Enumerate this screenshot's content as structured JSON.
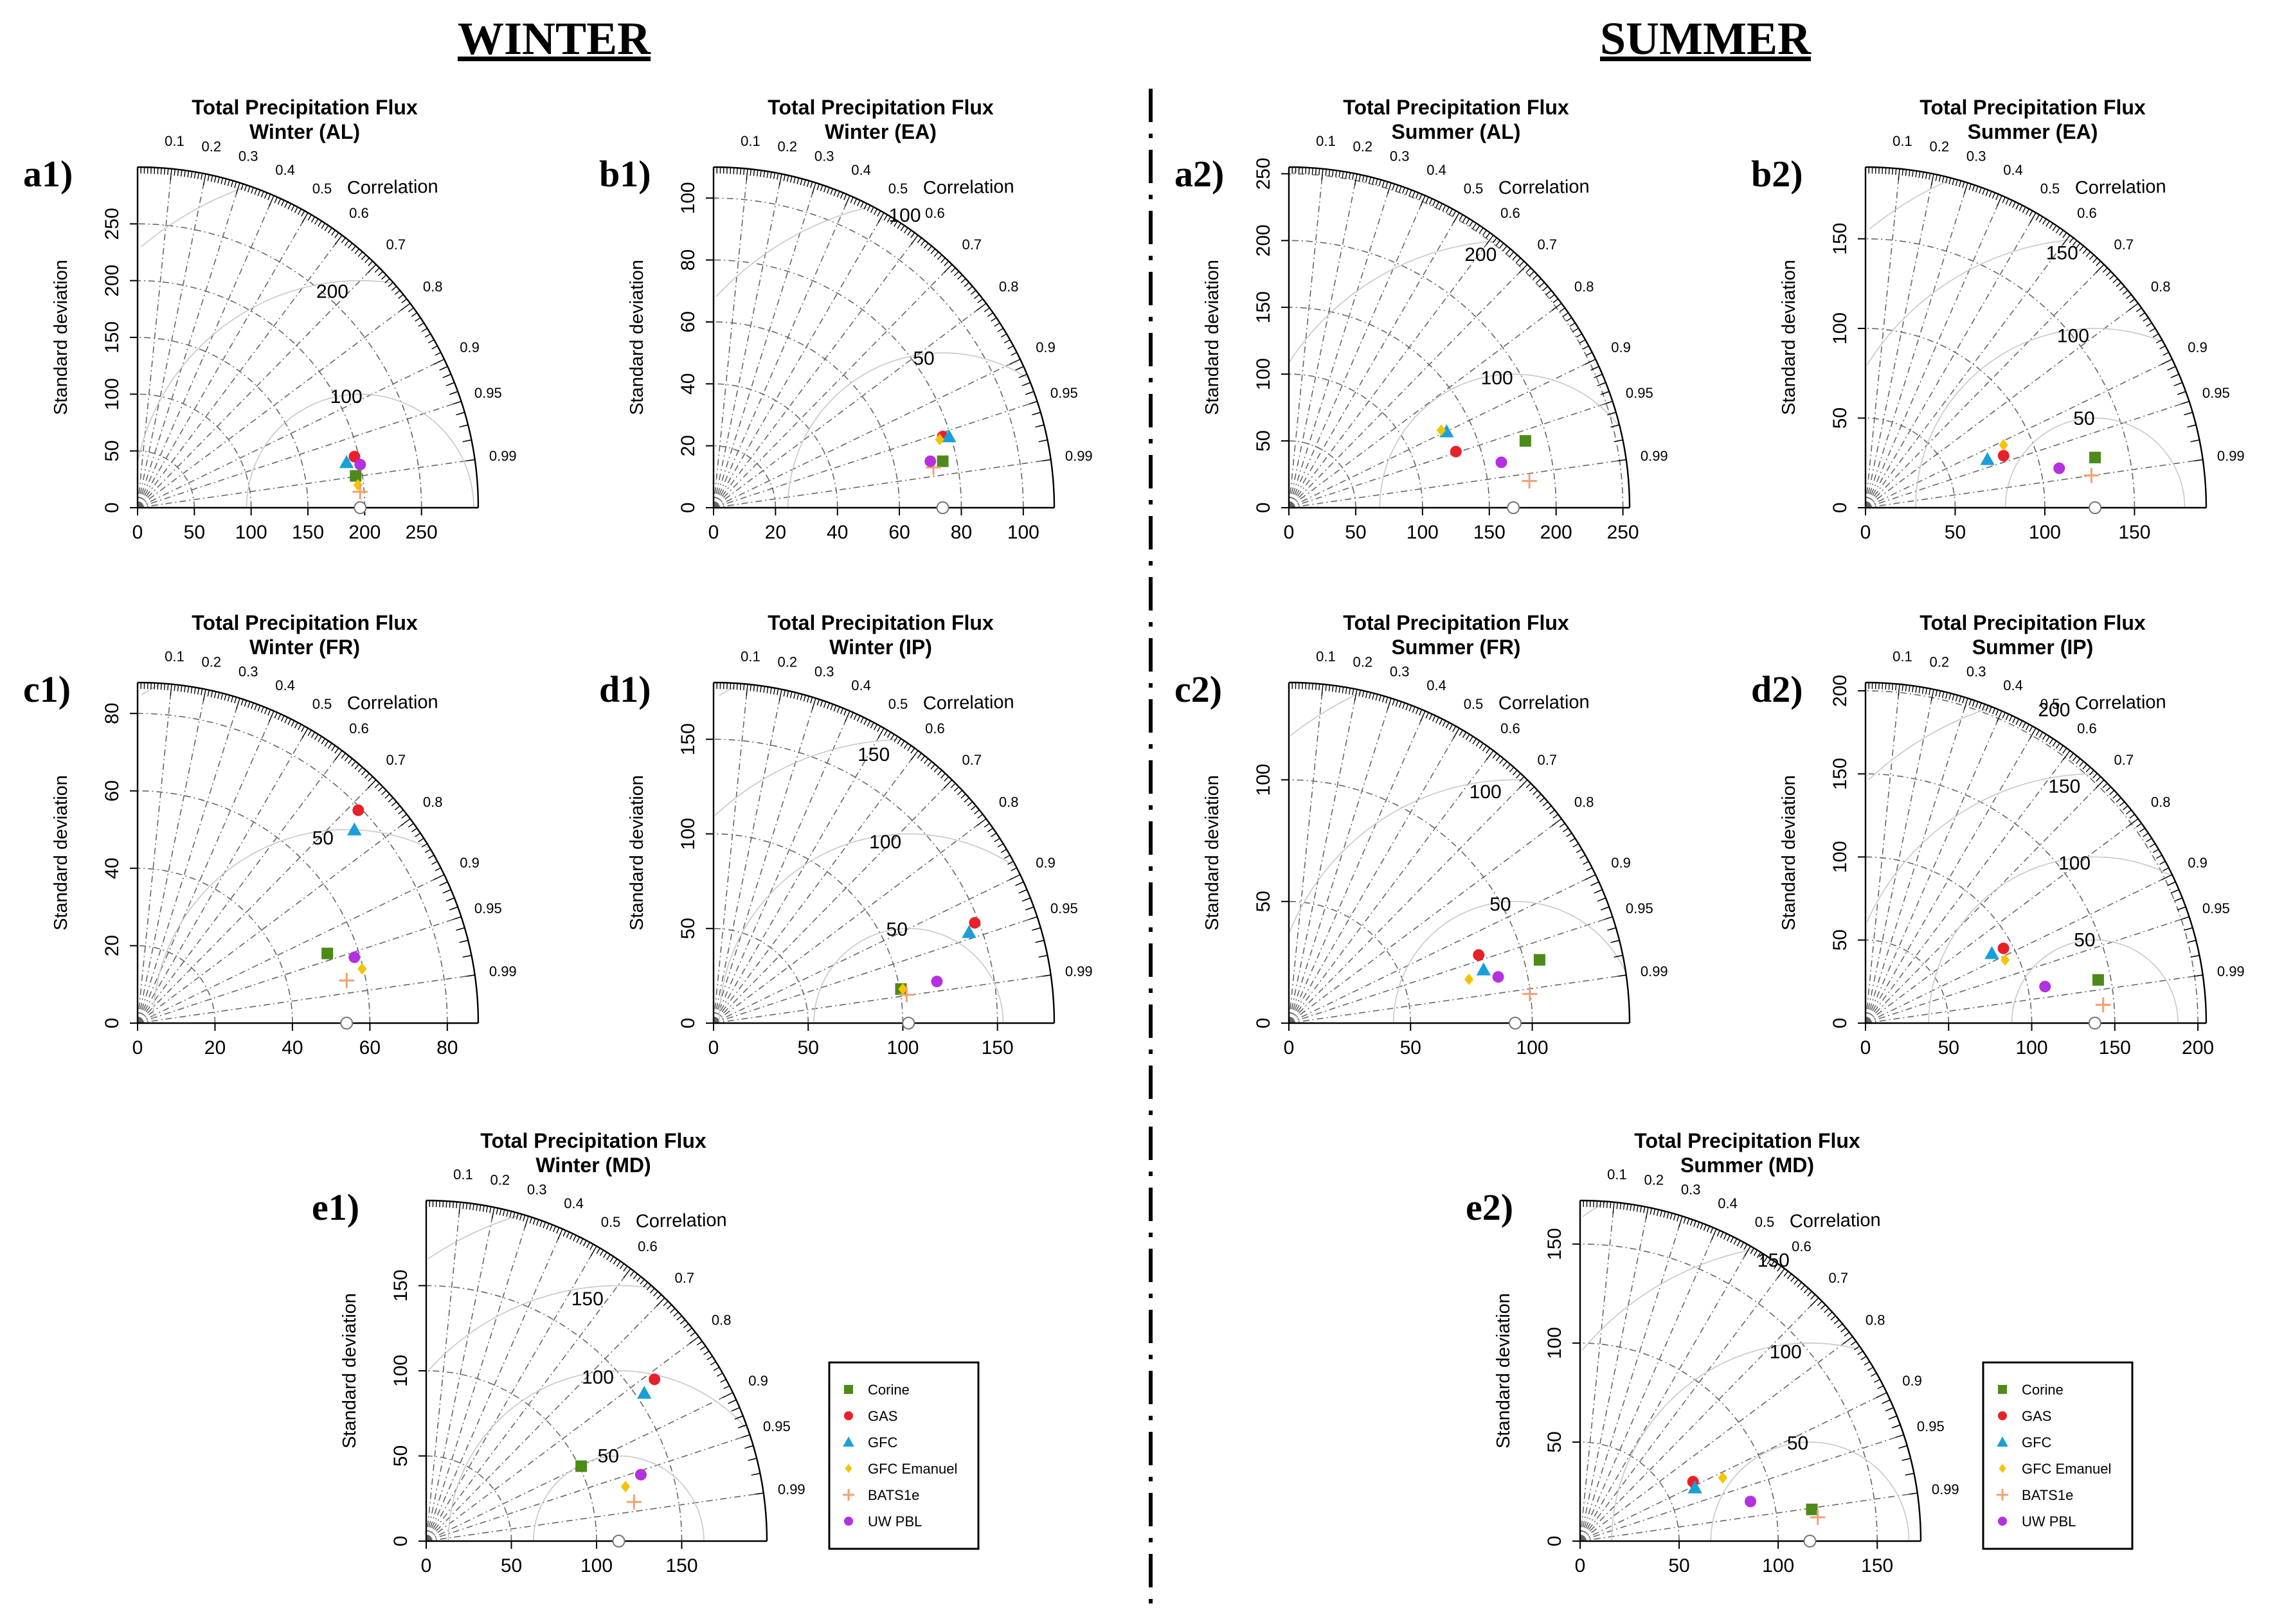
{
  "figure": {
    "season_titles": {
      "winter": "WINTER",
      "summer": "SUMMER"
    },
    "axis_title": "Standard deviation",
    "corr_title": "Correlation",
    "corr_labels": [
      "0.1",
      "0.2",
      "0.3",
      "0.4",
      "0.5",
      "0.6",
      "0.7",
      "0.8",
      "0.9",
      "0.95",
      "0.99"
    ],
    "colors": {
      "Corine": "#4d8a1a",
      "GAS": "#e8202a",
      "GFC": "#1aa0d8",
      "GFC Emanuel": "#f5c400",
      "BATS1e": "#f2a070",
      "UW PBL": "#b530e0"
    }
  },
  "legend": {
    "entries": [
      {
        "name": "Corine",
        "symbol": "square"
      },
      {
        "name": "GAS",
        "symbol": "circle"
      },
      {
        "name": "GFC",
        "symbol": "triangle"
      },
      {
        "name": "GFC Emanuel",
        "symbol": "diamond"
      },
      {
        "name": "BATS1e",
        "symbol": "plus"
      },
      {
        "name": "UW PBL",
        "symbol": "circle"
      }
    ]
  },
  "chart_data": [
    {
      "id": "a1",
      "panel_label": "a1)",
      "type": "scatter",
      "subtype": "taylor-diagram",
      "title": "Total Precipitation Flux",
      "subtitle": "Winter (AL)",
      "max_sd": 300,
      "ticks": [
        0,
        50,
        100,
        150,
        200,
        250
      ],
      "rms_labels": [
        100,
        200
      ],
      "ref_sd": 196,
      "points": [
        {
          "model": "Corine",
          "x": 192,
          "y": 28
        },
        {
          "model": "GAS",
          "x": 191,
          "y": 45
        },
        {
          "model": "GFC",
          "x": 184,
          "y": 40
        },
        {
          "model": "GFC Emanuel",
          "x": 194,
          "y": 20
        },
        {
          "model": "BATS1e",
          "x": 196,
          "y": 14
        },
        {
          "model": "UW PBL",
          "x": 196,
          "y": 38
        }
      ]
    },
    {
      "id": "b1",
      "panel_label": "b1)",
      "type": "scatter",
      "subtype": "taylor-diagram",
      "title": "Total Precipitation Flux",
      "subtitle": "Winter (EA)",
      "max_sd": 110,
      "ticks": [
        0,
        20,
        40,
        60,
        80,
        100
      ],
      "y_ticks": [
        0,
        20,
        40,
        60,
        80,
        100
      ],
      "rms_labels": [
        50,
        100
      ],
      "ref_sd": 74,
      "points": [
        {
          "model": "Corine",
          "x": 74,
          "y": 15
        },
        {
          "model": "GAS",
          "x": 74,
          "y": 23
        },
        {
          "model": "GFC",
          "x": 76,
          "y": 23
        },
        {
          "model": "GFC Emanuel",
          "x": 73,
          "y": 22
        },
        {
          "model": "BATS1e",
          "x": 71,
          "y": 13
        },
        {
          "model": "UW PBL",
          "x": 70,
          "y": 15
        }
      ]
    },
    {
      "id": "a2",
      "panel_label": "a2)",
      "type": "scatter",
      "subtype": "taylor-diagram",
      "title": "Total Precipitation Flux",
      "subtitle": "Summer (AL)",
      "max_sd": 255,
      "ticks": [
        0,
        50,
        100,
        150,
        200,
        250
      ],
      "rms_labels": [
        100,
        200
      ],
      "ref_sd": 168,
      "points": [
        {
          "model": "Corine",
          "x": 177,
          "y": 50
        },
        {
          "model": "GAS",
          "x": 125,
          "y": 42
        },
        {
          "model": "GFC",
          "x": 118,
          "y": 57
        },
        {
          "model": "GFC Emanuel",
          "x": 114,
          "y": 58
        },
        {
          "model": "BATS1e",
          "x": 180,
          "y": 20
        },
        {
          "model": "UW PBL",
          "x": 159,
          "y": 34
        }
      ]
    },
    {
      "id": "b2",
      "panel_label": "b2)",
      "type": "scatter",
      "subtype": "taylor-diagram",
      "title": "Total Precipitation Flux",
      "subtitle": "Summer (EA)",
      "max_sd": 190,
      "ticks": [
        0,
        50,
        100,
        150
      ],
      "rms_labels": [
        50,
        100,
        150
      ],
      "ref_sd": 128,
      "points": [
        {
          "model": "Corine",
          "x": 128,
          "y": 28
        },
        {
          "model": "GAS",
          "x": 77,
          "y": 29
        },
        {
          "model": "GFC",
          "x": 68,
          "y": 27
        },
        {
          "model": "GFC Emanuel",
          "x": 77,
          "y": 35
        },
        {
          "model": "BATS1e",
          "x": 126,
          "y": 18
        },
        {
          "model": "UW PBL",
          "x": 108,
          "y": 22
        }
      ]
    },
    {
      "id": "c1",
      "panel_label": "c1)",
      "type": "scatter",
      "subtype": "taylor-diagram",
      "title": "Total Precipitation Flux",
      "subtitle": "Winter (FR)",
      "max_sd": 88,
      "ticks": [
        0,
        20,
        40,
        60,
        80
      ],
      "y_ticks": [
        0,
        20,
        40,
        60,
        80
      ],
      "rms_labels": [
        50
      ],
      "ref_sd": 54,
      "points": [
        {
          "model": "Corine",
          "x": 49,
          "y": 18
        },
        {
          "model": "GAS",
          "x": 57,
          "y": 55
        },
        {
          "model": "GFC",
          "x": 56,
          "y": 50
        },
        {
          "model": "GFC Emanuel",
          "x": 58,
          "y": 14
        },
        {
          "model": "BATS1e",
          "x": 54,
          "y": 11
        },
        {
          "model": "UW PBL",
          "x": 56,
          "y": 17
        }
      ]
    },
    {
      "id": "d1",
      "panel_label": "d1)",
      "type": "scatter",
      "subtype": "taylor-diagram",
      "title": "Total Precipitation Flux",
      "subtitle": "Winter (IP)",
      "max_sd": 180,
      "ticks": [
        0,
        50,
        100,
        150
      ],
      "rms_labels": [
        50,
        100,
        150
      ],
      "ref_sd": 103,
      "points": [
        {
          "model": "Corine",
          "x": 99,
          "y": 18
        },
        {
          "model": "GAS",
          "x": 138,
          "y": 53
        },
        {
          "model": "GFC",
          "x": 135,
          "y": 48
        },
        {
          "model": "GFC Emanuel",
          "x": 100,
          "y": 18
        },
        {
          "model": "BATS1e",
          "x": 102,
          "y": 15
        },
        {
          "model": "UW PBL",
          "x": 118,
          "y": 22
        }
      ]
    },
    {
      "id": "c2",
      "panel_label": "c2)",
      "type": "scatter",
      "subtype": "taylor-diagram",
      "title": "Total Precipitation Flux",
      "subtitle": "Summer (FR)",
      "max_sd": 140,
      "ticks": [
        0,
        50,
        100
      ],
      "y_ticks": [
        0,
        50,
        100
      ],
      "rms_labels": [
        50,
        100
      ],
      "ref_sd": 93,
      "points": [
        {
          "model": "Corine",
          "x": 103,
          "y": 26
        },
        {
          "model": "GAS",
          "x": 78,
          "y": 28
        },
        {
          "model": "GFC",
          "x": 80,
          "y": 22
        },
        {
          "model": "GFC Emanuel",
          "x": 74,
          "y": 18
        },
        {
          "model": "BATS1e",
          "x": 99,
          "y": 12
        },
        {
          "model": "UW PBL",
          "x": 86,
          "y": 19
        }
      ]
    },
    {
      "id": "d2",
      "panel_label": "d2)",
      "type": "scatter",
      "subtype": "taylor-diagram",
      "title": "Total Precipitation Flux",
      "subtitle": "Summer (IP)",
      "max_sd": 205,
      "ticks": [
        0,
        50,
        100,
        150,
        200
      ],
      "rms_labels": [
        50,
        100,
        150,
        200
      ],
      "ref_sd": 138,
      "points": [
        {
          "model": "Corine",
          "x": 140,
          "y": 26
        },
        {
          "model": "GAS",
          "x": 83,
          "y": 45
        },
        {
          "model": "GFC",
          "x": 76,
          "y": 42
        },
        {
          "model": "GFC Emanuel",
          "x": 84,
          "y": 38
        },
        {
          "model": "BATS1e",
          "x": 143,
          "y": 11
        },
        {
          "model": "UW PBL",
          "x": 108,
          "y": 22
        }
      ]
    },
    {
      "id": "e1",
      "panel_label": "e1)",
      "type": "scatter",
      "subtype": "taylor-diagram",
      "title": "Total Precipitation Flux",
      "subtitle": "Winter (MD)",
      "max_sd": 200,
      "ticks": [
        0,
        50,
        100,
        150
      ],
      "rms_labels": [
        50,
        100,
        150
      ],
      "ref_sd": 113,
      "points": [
        {
          "model": "Corine",
          "x": 91,
          "y": 44
        },
        {
          "model": "GAS",
          "x": 134,
          "y": 95
        },
        {
          "model": "GFC",
          "x": 128,
          "y": 87
        },
        {
          "model": "GFC Emanuel",
          "x": 117,
          "y": 32
        },
        {
          "model": "BATS1e",
          "x": 122,
          "y": 23
        },
        {
          "model": "UW PBL",
          "x": 126,
          "y": 39
        }
      ]
    },
    {
      "id": "e2",
      "panel_label": "e2)",
      "type": "scatter",
      "subtype": "taylor-diagram",
      "title": "Total Precipitation Flux",
      "subtitle": "Summer (MD)",
      "max_sd": 172,
      "ticks": [
        0,
        50,
        100,
        150
      ],
      "rms_labels": [
        50,
        100,
        150
      ],
      "ref_sd": 116,
      "points": [
        {
          "model": "Corine",
          "x": 117,
          "y": 16
        },
        {
          "model": "GAS",
          "x": 57,
          "y": 30
        },
        {
          "model": "GFC",
          "x": 58,
          "y": 27
        },
        {
          "model": "GFC Emanuel",
          "x": 72,
          "y": 32
        },
        {
          "model": "BATS1e",
          "x": 120,
          "y": 12
        },
        {
          "model": "UW PBL",
          "x": 86,
          "y": 20
        }
      ]
    }
  ]
}
